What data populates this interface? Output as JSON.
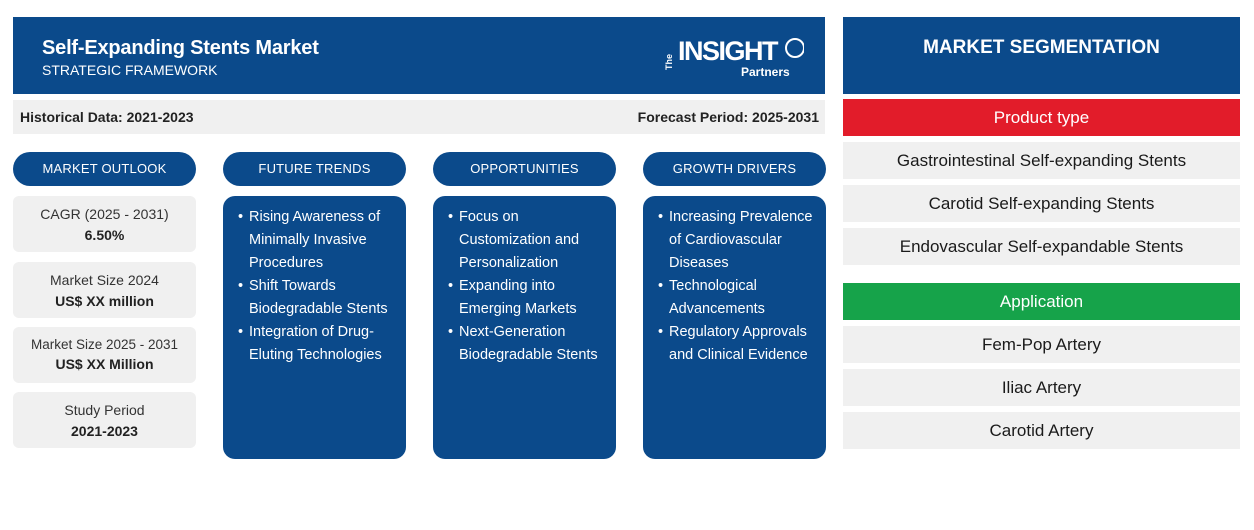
{
  "header": {
    "title": "Self-Expanding Stents Market",
    "subtitle": "STRATEGIC FRAMEWORK",
    "logo": {
      "the": "The",
      "brand": "INSIGHT",
      "partners": "Partners"
    }
  },
  "periods": {
    "historical": "Historical Data: 2021-2023",
    "forecast": "Forecast Period: 2025-2031"
  },
  "columns": {
    "outlook": "MARKET OUTLOOK",
    "trends": "FUTURE TRENDS",
    "opportunities": "OPPORTUNITIES",
    "drivers": "GROWTH DRIVERS"
  },
  "outlook": [
    {
      "label": "CAGR (2025 - 2031)",
      "value": "6.50%"
    },
    {
      "label": "Market Size 2024",
      "value": "US$ XX million"
    },
    {
      "label": "Market Size 2025 - 2031",
      "value": "US$ XX Million"
    },
    {
      "label": "Study Period",
      "value": "2021-2023"
    }
  ],
  "trends": [
    "Rising Awareness of Minimally Invasive Procedures",
    "Shift Towards Biodegradable Stents",
    "Integration of Drug-Eluting Technologies"
  ],
  "opportunities": [
    "Focus on Customization and Personalization",
    "Expanding into Emerging Markets",
    "Next-Generation Biodegradable Stents"
  ],
  "drivers": [
    "Increasing Prevalence of Cardiovascular Diseases",
    "Technological Advancements",
    "Regulatory Approvals and Clinical Evidence"
  ],
  "segmentation": {
    "title": "MARKET SEGMENTATION",
    "product_type": {
      "label": "Product type",
      "color": "#e21c2a",
      "items": [
        "Gastrointestinal Self-expanding Stents",
        "Carotid Self-expanding Stents",
        "Endovascular Self-expandable Stents"
      ]
    },
    "application": {
      "label": "Application",
      "color": "#16a34a",
      "items": [
        "Fem-Pop Artery",
        "Iliac Artery",
        "Carotid Artery"
      ]
    }
  },
  "colors": {
    "primary": "#0b4a8b",
    "panel_bg": "#f0f0f0"
  }
}
